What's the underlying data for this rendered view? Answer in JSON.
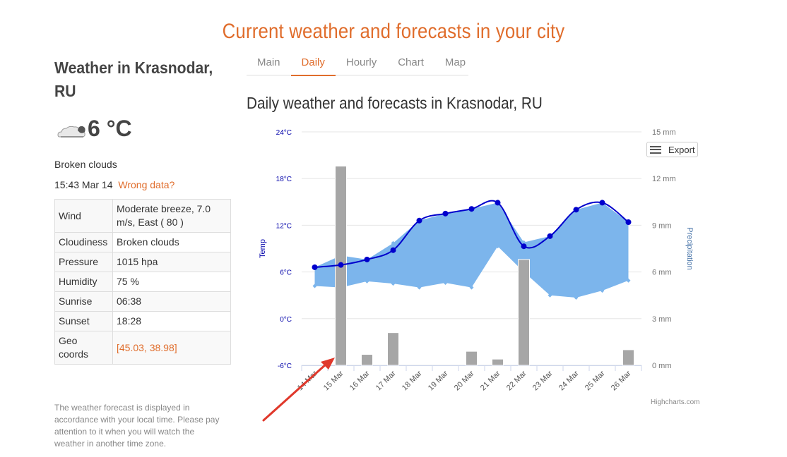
{
  "site": {
    "title": "Current weather and forecasts in your city"
  },
  "current": {
    "city": "Weather in Krasnodar, RU",
    "temp": "6 °C",
    "icon": "cloud-sun-icon",
    "condition": "Broken clouds",
    "time": "15:43 Mar 14",
    "wrong_data": "Wrong data?"
  },
  "details": [
    {
      "key": "Wind",
      "value": "Moderate breeze, 7.0 m/s, East ( 80 )"
    },
    {
      "key": "Cloudiness",
      "value": "Broken clouds"
    },
    {
      "key": "Pressure",
      "value": "1015 hpa"
    },
    {
      "key": "Humidity",
      "value": "75 %"
    },
    {
      "key": "Sunrise",
      "value": "06:38"
    },
    {
      "key": "Sunset",
      "value": "18:28"
    },
    {
      "key": "Geo coords",
      "value": "[45.03, 38.98]"
    }
  ],
  "note": "The weather forecast is displayed in accordance with your local time. Please pay attention to it when you will watch the weather in another time zone.",
  "tabs": [
    "Main",
    "Daily",
    "Hourly",
    "Chart",
    "Map"
  ],
  "active_tab": "Daily",
  "section_title": "Daily weather and forecasts in Krasnodar, RU",
  "export_label": "Export",
  "credit": "Highcharts.com",
  "colors": {
    "accent": "#e06d2c",
    "temp_line": "#0000cc",
    "range_fill": "#7cb5ec",
    "precip_bar": "#a6a6a6"
  },
  "chart_data": {
    "type": "line",
    "categories": [
      "14 Mar",
      "15 Mar",
      "16 Mar",
      "17 Mar",
      "18 Mar",
      "19 Mar",
      "20 Mar",
      "21 Mar",
      "22 Mar",
      "23 Mar",
      "24 Mar",
      "25 Mar",
      "26 Mar"
    ],
    "series": [
      {
        "values": [
          6.6,
          6.9,
          7.6,
          8.8,
          12.6,
          13.5,
          14.1,
          14.9,
          9.3,
          10.6,
          14.0,
          14.9,
          12.4
        ]
      },
      {
        "values_low": [
          4.2,
          4.0,
          4.8,
          4.5,
          4.0,
          4.6,
          4.0,
          9.3,
          6.0,
          3.0,
          2.7,
          3.6,
          4.9
        ],
        "values_high": [
          6.6,
          8.1,
          7.6,
          9.7,
          12.6,
          13.5,
          14.1,
          14.9,
          9.8,
          10.6,
          14.0,
          14.9,
          12.4
        ]
      },
      {
        "values": [
          0,
          12.8,
          0.7,
          2.1,
          0,
          0,
          0.9,
          0.4,
          6.8,
          0,
          0,
          0,
          1.0
        ]
      }
    ],
    "ylabel_left": "Temp",
    "ylabel_right": "Precipitation",
    "ylim_left": [
      -6,
      24
    ],
    "yticks_left": [
      "-6°C",
      "0°C",
      "6°C",
      "12°C",
      "18°C",
      "24°C"
    ],
    "ylim_right": [
      0,
      15
    ],
    "yticks_right": [
      "0 mm",
      "3 mm",
      "6 mm",
      "9 mm",
      "12 mm",
      "15 mm"
    ],
    "grid": true
  }
}
